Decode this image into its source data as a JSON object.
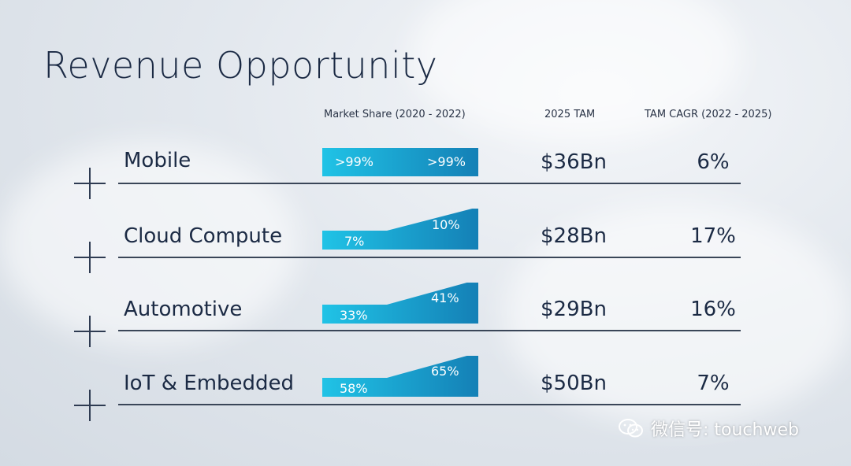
{
  "slide": {
    "title": "Revenue Opportunity",
    "headers": {
      "market_share": "Market Share  (2020 - 2022)",
      "tam": "2025 TAM",
      "cagr": "TAM CAGR (2022 - 2025)"
    },
    "rows": [
      {
        "label": "Mobile",
        "share_2020": ">99%",
        "share_2022": ">99%",
        "share_2020_value": 99,
        "share_2022_value": 99,
        "tam": "$36Bn",
        "cagr": "6%"
      },
      {
        "label": "Cloud Compute",
        "share_2020": "7%",
        "share_2022": "10%",
        "share_2020_value": 7,
        "share_2022_value": 10,
        "tam": "$28Bn",
        "cagr": "17%"
      },
      {
        "label": "Automotive",
        "share_2020": "33%",
        "share_2022": "41%",
        "share_2020_value": 33,
        "share_2022_value": 41,
        "tam": "$29Bn",
        "cagr": "16%"
      },
      {
        "label": "IoT & Embedded",
        "share_2020": "58%",
        "share_2022": "65%",
        "share_2020_value": 58,
        "share_2022_value": 65,
        "tam": "$50Bn",
        "cagr": "7%"
      }
    ]
  },
  "watermark": {
    "text": "微信号: touchweb",
    "icon": "wechat-icon"
  },
  "colors": {
    "title": "#1b2a44",
    "bar_light": "#20c3e6",
    "bar_dark": "#1480b6",
    "rule": "#3a4658"
  }
}
